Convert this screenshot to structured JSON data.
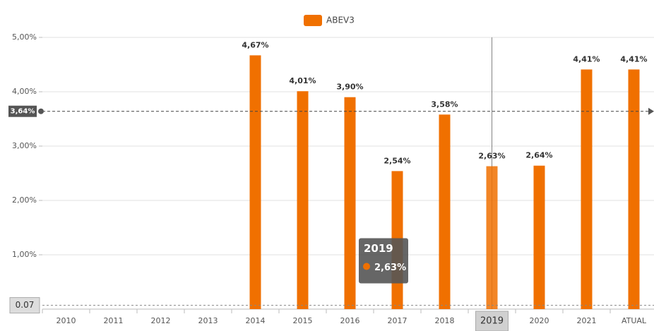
{
  "chart_data": {
    "type": "bar",
    "series": [
      {
        "name": "ABEV3",
        "color": "#f07000"
      }
    ],
    "categories": [
      "2010",
      "2011",
      "2012",
      "2013",
      "2014",
      "2015",
      "2016",
      "2017",
      "2018",
      "2019",
      "2020",
      "2021",
      "ATUAL"
    ],
    "values": [
      null,
      null,
      null,
      null,
      4.67,
      4.01,
      3.9,
      2.54,
      3.58,
      2.63,
      2.64,
      4.41,
      4.41
    ],
    "value_labels": [
      null,
      null,
      null,
      null,
      "4,67%",
      "4,01%",
      "3,90%",
      "2,54%",
      "3,58%",
      "2,63%",
      "2,64%",
      "4,41%",
      "4,41%"
    ],
    "ylim": [
      0,
      5
    ],
    "yticks": [
      {
        "value": 1,
        "label": "1,00%"
      },
      {
        "value": 2,
        "label": "2,00%"
      },
      {
        "value": 3,
        "label": "3,00%"
      },
      {
        "value": 4,
        "label": "4,00%"
      },
      {
        "value": 5,
        "label": "5,00%"
      }
    ],
    "grid": true,
    "reference_lines": [
      {
        "value": 3.64,
        "label": "3,64%"
      },
      {
        "value": 0.07,
        "label": "0.07"
      }
    ],
    "hover_index": 9
  }
}
